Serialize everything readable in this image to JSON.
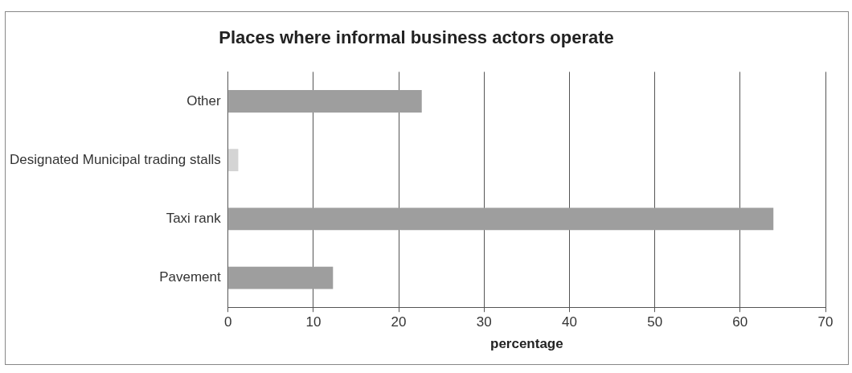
{
  "chart_data": {
    "type": "bar",
    "orientation": "horizontal",
    "title": "Places where informal business actors operate",
    "xlabel": "percentage",
    "categories": [
      "Other",
      "Designated Municipal trading stalls",
      "Taxi rank",
      "Pavement"
    ],
    "values": [
      22.7,
      1.2,
      63.9,
      12.3
    ],
    "colors": [
      "#9e9e9e",
      "#d4d4d4",
      "#9e9e9e",
      "#9e9e9e"
    ],
    "xlim": [
      0,
      70
    ],
    "xticks": [
      0,
      10,
      20,
      30,
      40,
      50,
      60,
      70
    ],
    "grid": "x",
    "legend": false
  }
}
